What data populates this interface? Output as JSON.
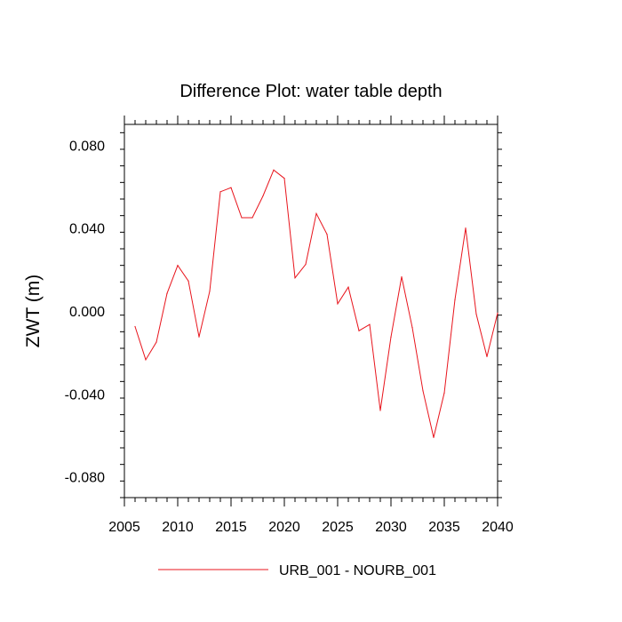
{
  "chart_data": {
    "type": "line",
    "title": "Difference Plot: water table depth",
    "xlabel": "",
    "ylabel": "ZWT  (m)",
    "xlim": [
      2005,
      2040
    ],
    "ylim": [
      -0.09,
      0.09
    ],
    "x_ticks": [
      2005,
      2010,
      2015,
      2020,
      2025,
      2030,
      2035,
      2040
    ],
    "y_ticks": [
      -0.08,
      -0.04,
      0.0,
      0.04,
      0.08
    ],
    "y_tick_labels": [
      "-0.080",
      "-0.040",
      "0.000",
      "0.040",
      "0.080"
    ],
    "legend_position": "bottom-center",
    "series": [
      {
        "name": "URB_001 - NOURB_001",
        "color": "#e8141c",
        "x": [
          2006,
          2007,
          2008,
          2009,
          2010,
          2011,
          2012,
          2013,
          2014,
          2015,
          2016,
          2017,
          2018,
          2019,
          2020,
          2021,
          2022,
          2023,
          2024,
          2025,
          2026,
          2027,
          2028,
          2029,
          2030,
          2031,
          2032,
          2033,
          2034,
          2035,
          2036,
          2037,
          2038,
          2039,
          2040
        ],
        "values": [
          -0.0075,
          -0.0235,
          -0.015,
          0.0085,
          0.022,
          0.0145,
          -0.0125,
          0.0095,
          0.0575,
          0.0595,
          0.045,
          0.045,
          0.0555,
          0.068,
          0.064,
          0.016,
          0.0225,
          0.047,
          0.037,
          0.0035,
          0.0115,
          -0.0095,
          -0.0065,
          -0.048,
          -0.0125,
          0.0165,
          -0.008,
          -0.0385,
          -0.061,
          -0.0395,
          0.0055,
          0.04,
          -0.0015,
          -0.022,
          -0.001
        ]
      }
    ]
  }
}
